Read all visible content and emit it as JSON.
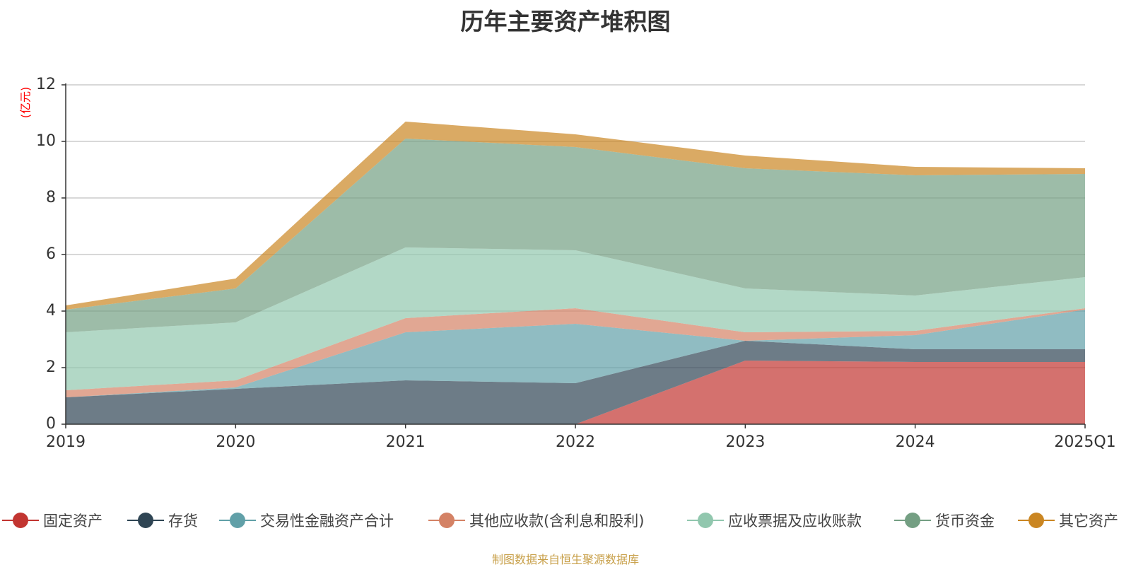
{
  "chart_data": {
    "type": "area",
    "stacked": true,
    "title": "历年主要资产堆积图",
    "ylabel": "(亿元)",
    "xlabel": "",
    "categories": [
      "2019",
      "2020",
      "2021",
      "2022",
      "2023",
      "2024",
      "2025Q1"
    ],
    "ylim": [
      0,
      12
    ],
    "yticks": [
      0,
      2,
      4,
      6,
      8,
      10,
      12
    ],
    "grid": true,
    "legend_position": "bottom",
    "series": [
      {
        "name": "固定资产",
        "color": "#c23531",
        "values": [
          0.0,
          0.0,
          0.0,
          0.0,
          2.25,
          2.2,
          2.2
        ]
      },
      {
        "name": "存货",
        "color": "#2f4554",
        "values": [
          0.95,
          1.25,
          1.55,
          1.45,
          0.7,
          0.45,
          0.45
        ]
      },
      {
        "name": "交易性金融资产合计",
        "color": "#61a0a8",
        "values": [
          0.0,
          0.05,
          1.7,
          2.1,
          0.0,
          0.5,
          1.4
        ]
      },
      {
        "name": "其他应收款(含利息和股利)",
        "color": "#d48265",
        "values": [
          0.25,
          0.25,
          0.5,
          0.55,
          0.3,
          0.15,
          0.05
        ]
      },
      {
        "name": "应收票据及应收账款",
        "color": "#91c7ae",
        "values": [
          2.05,
          2.05,
          2.5,
          2.05,
          1.55,
          1.25,
          1.1
        ]
      },
      {
        "name": "货币资金",
        "color": "#749f83",
        "values": [
          0.8,
          1.2,
          3.85,
          3.65,
          4.25,
          4.25,
          3.65
        ]
      },
      {
        "name": "其它资产",
        "color": "#ca8622",
        "values": [
          0.15,
          0.35,
          0.6,
          0.45,
          0.45,
          0.3,
          0.2
        ]
      }
    ]
  },
  "source_note": "制图数据来自恒生聚源数据库",
  "colors": {
    "title": "#333333",
    "ylabel": "#ff0000",
    "axis": "#333333",
    "grid": "#cccccc",
    "tick_text": "#333333",
    "source_note": "#c8a04a"
  }
}
